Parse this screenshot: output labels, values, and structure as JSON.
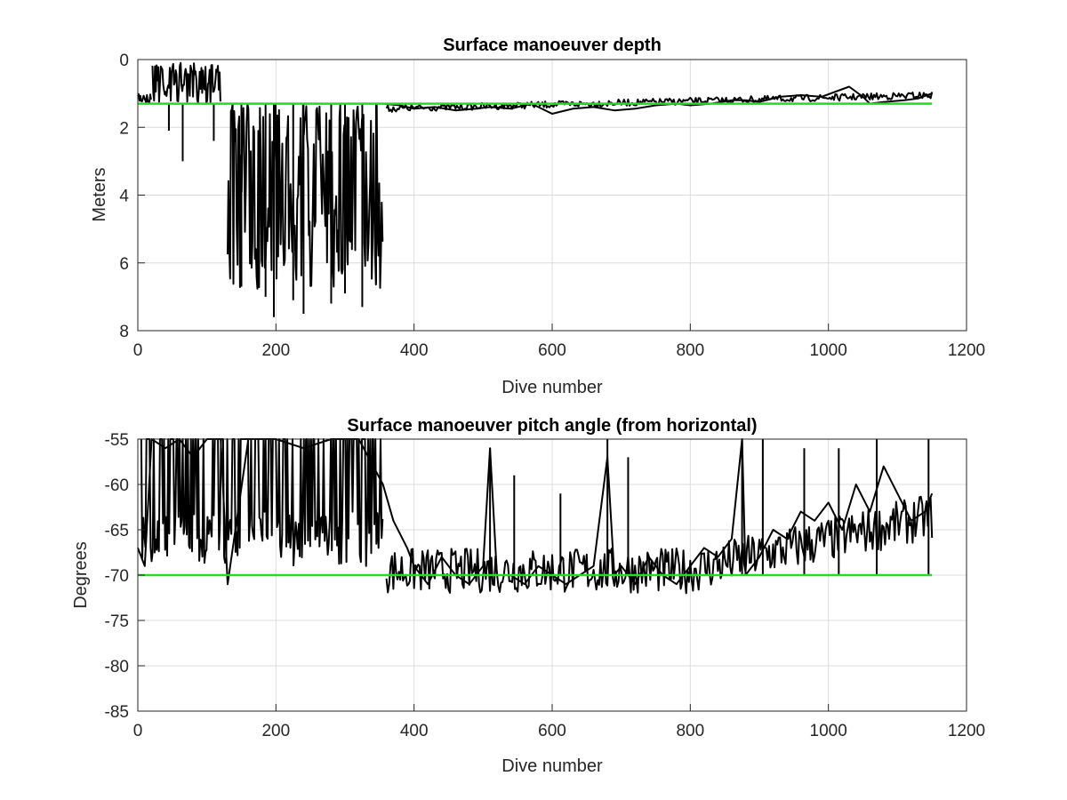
{
  "chart_data": [
    {
      "type": "line",
      "title": "Surface manoeuver depth",
      "xlabel": "Dive number",
      "ylabel": "Meters",
      "xlim": [
        0,
        1200
      ],
      "ylim": [
        0,
        8
      ],
      "y_reversed": true,
      "x_ticks": [
        "0",
        "200",
        "400",
        "600",
        "800",
        "1000",
        "1200"
      ],
      "y_ticks": [
        "0",
        "2",
        "4",
        "6",
        "8"
      ],
      "x_tick_values": [
        0,
        200,
        400,
        600,
        800,
        1000,
        1200
      ],
      "y_tick_values": [
        0,
        2,
        4,
        6,
        8
      ],
      "grid": true,
      "reference": {
        "color": "#22dd22",
        "y": 1.3,
        "x": [
          0,
          1150
        ]
      },
      "series": [
        {
          "color": "#000000",
          "segments": [
            {
              "x": [
                0,
                20
              ],
              "low": 1.0,
              "high": 1.3,
              "note": ""
            },
            {
              "x": [
                20,
                120
              ],
              "low": 0.1,
              "high": 1.3
            },
            {
              "x": [
                130,
                355
              ],
              "low": 1.3,
              "high": 6.8
            }
          ],
          "extremes": [
            {
              "x": 45,
              "y": 2.1
            },
            {
              "x": 65,
              "y": 3.0
            },
            {
              "x": 110,
              "y": 2.4
            },
            {
              "x": 150,
              "y": 6.7
            },
            {
              "x": 185,
              "y": 7.0
            },
            {
              "x": 197,
              "y": 7.6
            },
            {
              "x": 225,
              "y": 7.1
            },
            {
              "x": 240,
              "y": 7.5
            },
            {
              "x": 280,
              "y": 7.2
            },
            {
              "x": 300,
              "y": 6.9
            },
            {
              "x": 325,
              "y": 7.3
            },
            {
              "x": 345,
              "y": 6.6
            }
          ],
          "x": [
            355,
            380,
            400,
            430,
            460,
            490,
            510,
            540,
            570,
            600,
            630,
            660,
            690,
            720,
            750,
            780,
            800,
            830,
            860,
            880,
            900,
            930,
            960,
            990,
            1030,
            1050,
            1060,
            1080,
            1110,
            1130,
            1150
          ],
          "y": [
            1.3,
            1.35,
            1.45,
            1.4,
            1.5,
            1.45,
            1.4,
            1.45,
            1.3,
            1.6,
            1.45,
            1.4,
            1.5,
            1.45,
            1.35,
            1.3,
            1.35,
            1.3,
            1.2,
            1.2,
            1.25,
            1.1,
            1.05,
            1.1,
            0.8,
            1.1,
            1.3,
            1.25,
            1.2,
            1.15,
            1.0
          ]
        }
      ]
    },
    {
      "type": "line",
      "title": "Surface manoeuver pitch angle (from horizontal)",
      "xlabel": "Dive number",
      "ylabel": "Degrees",
      "xlim": [
        0,
        1200
      ],
      "ylim": [
        -85,
        -55
      ],
      "x_ticks": [
        "0",
        "200",
        "400",
        "600",
        "800",
        "1000",
        "1200"
      ],
      "y_ticks": [
        "-55",
        "-60",
        "-65",
        "-70",
        "-75",
        "-80",
        "-85"
      ],
      "x_tick_values": [
        0,
        200,
        400,
        600,
        800,
        1000,
        1200
      ],
      "y_tick_values": [
        -55,
        -60,
        -65,
        -70,
        -75,
        -80,
        -85
      ],
      "grid": true,
      "reference": {
        "color": "#22dd22",
        "y": -70,
        "x": [
          0,
          1150
        ]
      },
      "series": [
        {
          "color": "#000000",
          "x": [
            0,
            10,
            20,
            40,
            60,
            80,
            100,
            120,
            130,
            160,
            200,
            240,
            280,
            320,
            355,
            370,
            390,
            400,
            420,
            440,
            460,
            480,
            500,
            510,
            520,
            540,
            560,
            580,
            600,
            620,
            640,
            660,
            680,
            690,
            700,
            720,
            740,
            760,
            780,
            800,
            820,
            840,
            860,
            875,
            880,
            900,
            920,
            940,
            960,
            980,
            1000,
            1020,
            1040,
            1060,
            1080,
            1100,
            1120,
            1140,
            1150
          ],
          "y": [
            -67,
            -69,
            -55,
            -56,
            -55,
            -57,
            -55,
            -55,
            -71,
            -55,
            -55,
            -56,
            -55,
            -55,
            -60,
            -64,
            -67,
            -69,
            -71,
            -68,
            -70,
            -71,
            -69,
            -56,
            -70,
            -70,
            -71,
            -69,
            -70,
            -71,
            -70,
            -69,
            -57,
            -70,
            -69,
            -71,
            -68,
            -70,
            -71,
            -69,
            -67,
            -68,
            -66,
            -55,
            -70,
            -68,
            -65,
            -66,
            -63,
            -64,
            -62,
            -65,
            -60,
            -63,
            -58,
            -61,
            -64,
            -63,
            -61
          ]
        }
      ],
      "spikes": [
        {
          "x": 510,
          "y": -56
        },
        {
          "x": 545,
          "y": -59
        },
        {
          "x": 612,
          "y": -61
        },
        {
          "x": 680,
          "y": -55
        },
        {
          "x": 710,
          "y": -57
        },
        {
          "x": 875,
          "y": -55
        },
        {
          "x": 905,
          "y": -55
        },
        {
          "x": 965,
          "y": -56
        },
        {
          "x": 1015,
          "y": -56
        },
        {
          "x": 1070,
          "y": -55
        },
        {
          "x": 1145,
          "y": -55
        }
      ]
    }
  ]
}
